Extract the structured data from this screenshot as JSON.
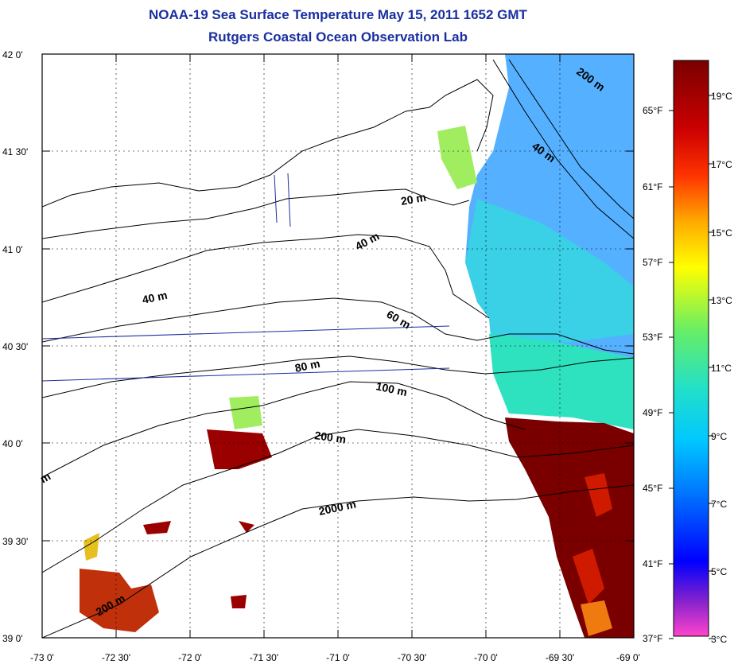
{
  "title": {
    "line1": "NOAA-19 Sea Surface Temperature May 15, 2011 1652 GMT",
    "line2": "Rutgers Coastal Ocean Observation Lab"
  },
  "axes": {
    "lon_ticks": [
      "-73 0'",
      "-72 30'",
      "-72 0'",
      "-71 30'",
      "-71 0'",
      "-70 30'",
      "-70 0'",
      "-69 30'",
      "-69 0'"
    ],
    "lat_ticks": [
      "42 0'",
      "41 30'",
      "41 0'",
      "40 30'",
      "40 0'",
      "39 30'",
      "39 0'"
    ]
  },
  "isobaths": [
    "20 m",
    "40 m",
    "40 m",
    "60 m",
    "80 m",
    "100 m",
    "200 m",
    "2000 m",
    "200 m",
    "40 m",
    "200 m",
    "m"
  ],
  "colorbar": {
    "celsius": [
      "19°C",
      "17°C",
      "15°C",
      "13°C",
      "11°C",
      "9°C",
      "7°C",
      "5°C",
      "3°C"
    ],
    "fahrenheit": [
      "65°F",
      "61°F",
      "57°F",
      "53°F",
      "49°F",
      "45°F",
      "41°F",
      "37°F"
    ],
    "colors": [
      "#ff44cc",
      "#8822cc",
      "#0000ff",
      "#0077ff",
      "#00c8ff",
      "#22e0c8",
      "#66ee66",
      "#ffff00",
      "#ffaa00",
      "#ff3300",
      "#cc0000",
      "#7a0000"
    ]
  },
  "sst_colors": {
    "cold": "#55b0ff",
    "cool": "#3ad0e6",
    "mild": "#2ee2c0",
    "green": "#a0ee60",
    "warm": "#7a0000",
    "hot": "#d01a00",
    "orange": "#ee7a10"
  }
}
